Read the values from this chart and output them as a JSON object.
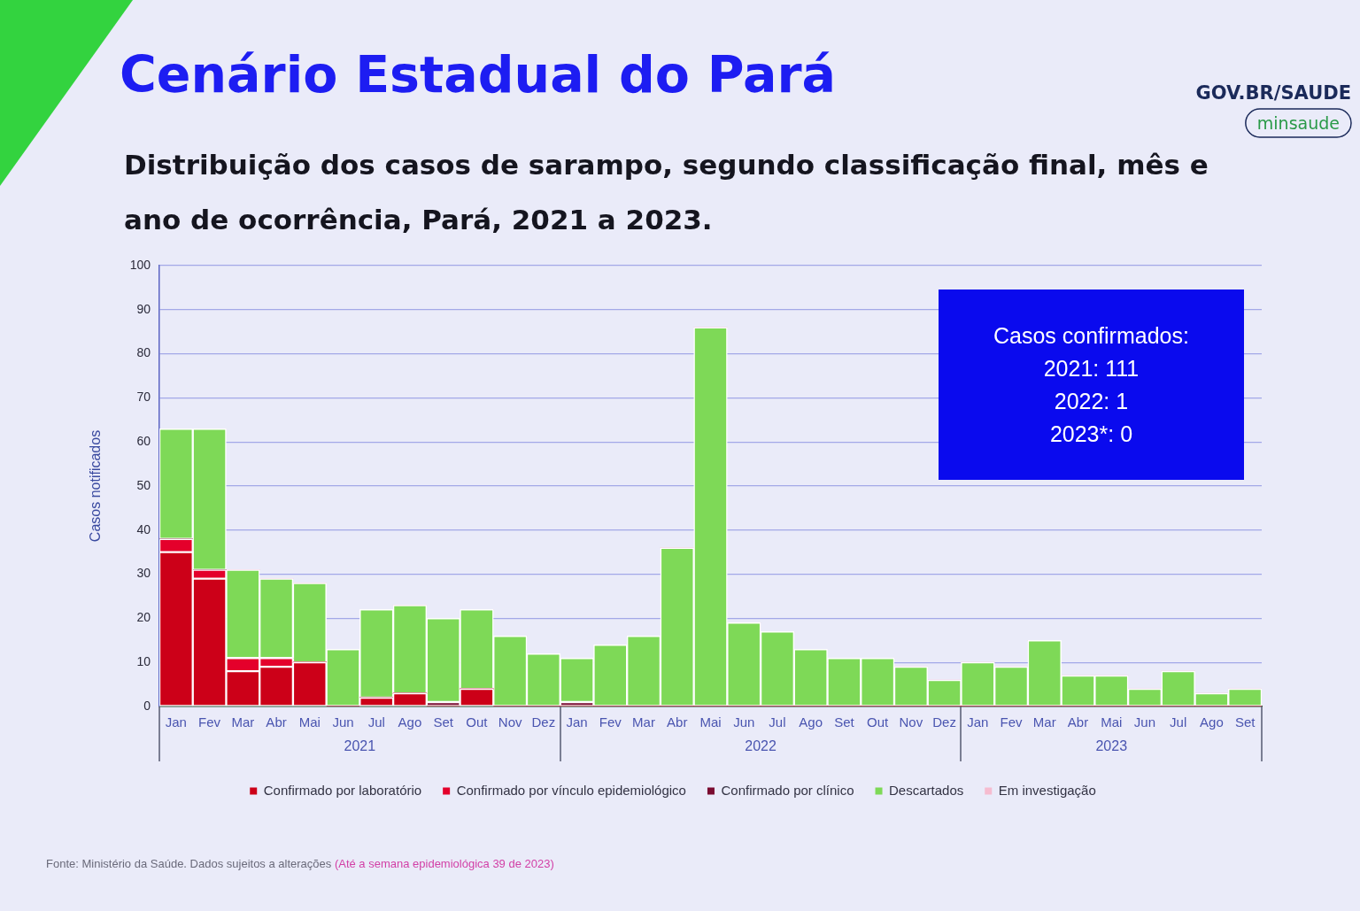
{
  "chart_data": {
    "type": "bar",
    "stacked": true,
    "title": "Cenário Estadual do Pará",
    "subtitle": "Distribuição dos casos de sarampo, segundo classificação final, mês e ano de ocorrência, Pará, 2021 a 2023.",
    "ylabel": "Casos notificados",
    "categories": [
      "Jan",
      "Fev",
      "Mar",
      "Abr",
      "Mai",
      "Jun",
      "Jul",
      "Ago",
      "Set",
      "Out",
      "Nov",
      "Dez",
      "Jan",
      "Fev",
      "Mar",
      "Abr",
      "Mai",
      "Jun",
      "Jul",
      "Ago",
      "Set",
      "Out",
      "Nov",
      "Dez",
      "Jan",
      "Fev",
      "Mar",
      "Abr",
      "Mai",
      "Jun",
      "Jul",
      "Ago",
      "Set"
    ],
    "series": [
      {
        "name": "Confirmado por laboratório",
        "color": "#cc0018",
        "values": [
          35,
          29,
          8,
          9,
          10,
          0,
          2,
          3,
          0,
          4,
          0,
          0,
          0,
          0,
          0,
          0,
          0,
          0,
          0,
          0,
          0,
          0,
          0,
          0,
          0,
          0,
          0,
          0,
          0,
          0,
          0,
          0,
          0
        ]
      },
      {
        "name": "Confirmado por vínculo epidemiológico",
        "color": "#e4002b",
        "values": [
          3,
          2,
          3,
          2,
          0,
          0,
          0,
          0,
          0,
          0,
          0,
          0,
          0,
          0,
          0,
          0,
          0,
          0,
          0,
          0,
          0,
          0,
          0,
          0,
          0,
          0,
          0,
          0,
          0,
          0,
          0,
          0,
          0
        ]
      },
      {
        "name": "Confirmado por clínico",
        "color": "#7a0b30",
        "values": [
          0,
          0,
          0,
          0,
          0,
          0,
          0,
          0,
          1,
          0,
          0,
          0,
          1,
          0,
          0,
          0,
          0,
          0,
          0,
          0,
          0,
          0,
          0,
          0,
          0,
          0,
          0,
          0,
          0,
          0,
          0,
          0,
          0
        ]
      },
      {
        "name": "Descartados",
        "color": "#7ed957",
        "values": [
          25,
          32,
          20,
          18,
          18,
          13,
          20,
          20,
          19,
          18,
          16,
          12,
          10,
          14,
          16,
          36,
          86,
          19,
          17,
          13,
          11,
          11,
          9,
          6,
          10,
          9,
          15,
          7,
          7,
          4,
          8,
          3,
          4
        ]
      },
      {
        "name": "Em investigação",
        "color": "#f6bcd0",
        "values": [
          0,
          0,
          0,
          0,
          0,
          0,
          0,
          0,
          0,
          0,
          0,
          0,
          0,
          0,
          0,
          0,
          0,
          0,
          0,
          0,
          0,
          0,
          0,
          0,
          0,
          0,
          0,
          0,
          0,
          0,
          0,
          0,
          0
        ]
      }
    ],
    "ylim": [
      0,
      100
    ],
    "yticks": [
      0,
      10,
      20,
      30,
      40,
      50,
      60,
      70,
      80,
      90,
      100
    ],
    "grid": "y",
    "legend": "bottom",
    "annotations": [
      "Casos confirmados:\n2021: 111\n2022: 1\n2023*: 0",
      "2021",
      "2022",
      "2023",
      "GOV.BR/SAUDE",
      "minsaude",
      "Fonte: Ministério da Saúde. Dados sujeitos a alterações",
      "(Até a semana epidemiológica 39 de 2023)"
    ]
  }
}
